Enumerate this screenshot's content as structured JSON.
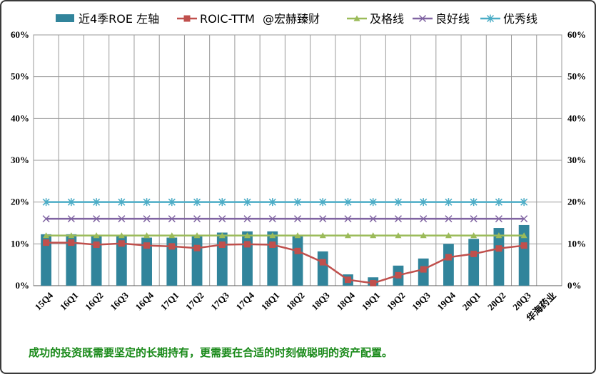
{
  "chart_data": {
    "type": "bar",
    "categories": [
      "15Q4",
      "16Q1",
      "16Q2",
      "16Q3",
      "16Q4",
      "17Q1",
      "17Q2",
      "17Q3",
      "17Q4",
      "18Q1",
      "18Q2",
      "18Q3",
      "18Q4",
      "19Q1",
      "19Q2",
      "19Q3",
      "19Q4",
      "20Q1",
      "20Q2",
      "20Q3",
      "华海药业"
    ],
    "ylim": [
      0,
      60
    ],
    "y_ticks": [
      "0%",
      "10%",
      "20%",
      "30%",
      "40%",
      "50%",
      "60%"
    ],
    "y_tick_values": [
      0,
      10,
      20,
      30,
      40,
      50,
      60
    ],
    "grid": true,
    "legend_position": "top",
    "legend_extra": "@宏赫臻财",
    "series": [
      {
        "name": "近4季ROE 左轴",
        "type": "bar",
        "color": "#31849b",
        "values": [
          12.3,
          12.3,
          12.0,
          12.0,
          11.5,
          11.5,
          11.8,
          12.7,
          13.0,
          13.0,
          11.8,
          8.2,
          2.7,
          2.0,
          4.8,
          6.5,
          10.0,
          11.2,
          13.8,
          14.5,
          null
        ]
      },
      {
        "name": "ROIC-TTM",
        "type": "line",
        "color": "#c0504d",
        "marker": "square",
        "values": [
          10.3,
          10.3,
          9.8,
          10.1,
          9.6,
          9.4,
          9.0,
          9.8,
          9.9,
          9.8,
          8.3,
          5.6,
          1.4,
          0.6,
          2.5,
          3.9,
          6.8,
          7.6,
          8.9,
          9.6,
          null
        ]
      },
      {
        "name": "及格线",
        "type": "line",
        "color": "#9bbb59",
        "marker": "triangle",
        "values": [
          12,
          12,
          12,
          12,
          12,
          12,
          12,
          12,
          12,
          12,
          12,
          12,
          12,
          12,
          12,
          12,
          12,
          12,
          12,
          12,
          null
        ]
      },
      {
        "name": "良好线",
        "type": "line",
        "color": "#8064a2",
        "marker": "x",
        "values": [
          16,
          16,
          16,
          16,
          16,
          16,
          16,
          16,
          16,
          16,
          16,
          16,
          16,
          16,
          16,
          16,
          16,
          16,
          16,
          16,
          null
        ]
      },
      {
        "name": "优秀线",
        "type": "line",
        "color": "#4bacc6",
        "marker": "star",
        "values": [
          20,
          20,
          20,
          20,
          20,
          20,
          20,
          20,
          20,
          20,
          20,
          20,
          20,
          20,
          20,
          20,
          20,
          20,
          20,
          20,
          null
        ]
      }
    ]
  },
  "footer": "成功的投资既需要坚定的长期持有，更需要在合适的时刻做聪明的资产配置。"
}
